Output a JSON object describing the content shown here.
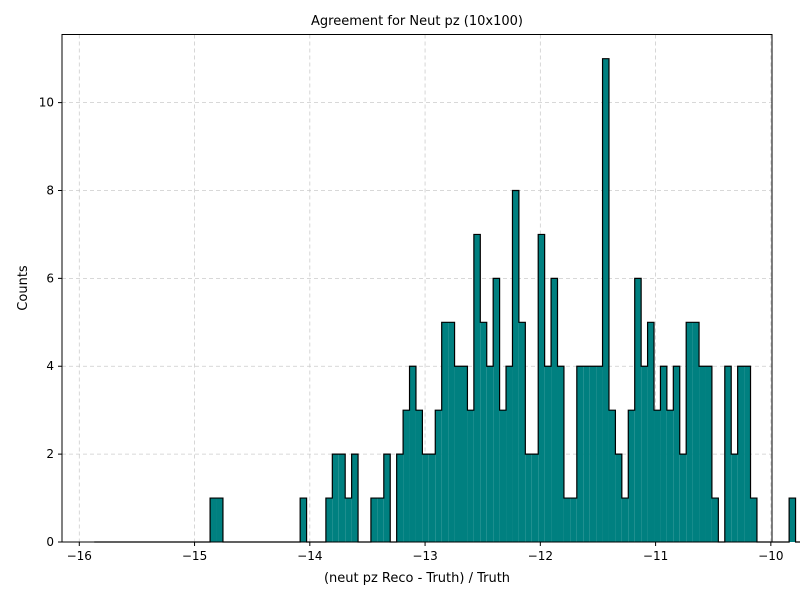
{
  "chart_data": {
    "type": "histogram",
    "title": "Agreement for Neut pz (10x100)",
    "xlabel": "(neut pz Reco - Truth) / Truth",
    "ylabel": "Counts",
    "xlim": [
      -16.15,
      -9.99
    ],
    "ylim": [
      0,
      11.55
    ],
    "xticks": [
      -16,
      -15,
      -14,
      -13,
      -12,
      -11,
      -10
    ],
    "xtick_labels": [
      "−16",
      "−15",
      "−14",
      "−13",
      "−12",
      "−11",
      "−10"
    ],
    "yticks": [
      0,
      2,
      4,
      6,
      8,
      10
    ],
    "ytick_labels": [
      "0",
      "2",
      "4",
      "6",
      "8",
      "10"
    ],
    "grid": true,
    "bin_start": -15.87,
    "bin_width": 0.05582,
    "counts": [
      0,
      0,
      0,
      0,
      0,
      0,
      0,
      0,
      0,
      0,
      0,
      0,
      0,
      0,
      0,
      0,
      0,
      0,
      1,
      1,
      0,
      0,
      0,
      0,
      0,
      0,
      0,
      0,
      0,
      0,
      0,
      0,
      1,
      0,
      0,
      0,
      1,
      2,
      2,
      1,
      2,
      0,
      0,
      1,
      1,
      2,
      0,
      2,
      3,
      4,
      3,
      2,
      2,
      3,
      5,
      5,
      4,
      4,
      3,
      7,
      5,
      4,
      6,
      3,
      4,
      8,
      5,
      2,
      2,
      7,
      4,
      6,
      4,
      1,
      1,
      4,
      4,
      4,
      4,
      11,
      3,
      2,
      1,
      3,
      6,
      4,
      5,
      3,
      4,
      3,
      4,
      2,
      5,
      5,
      4,
      4,
      1,
      0,
      4,
      2,
      4,
      4,
      1,
      0,
      0,
      0,
      0,
      0,
      1,
      0
    ],
    "colors": {
      "fill": "#008080",
      "edge": "#000000",
      "grid": "#cccccc"
    }
  }
}
